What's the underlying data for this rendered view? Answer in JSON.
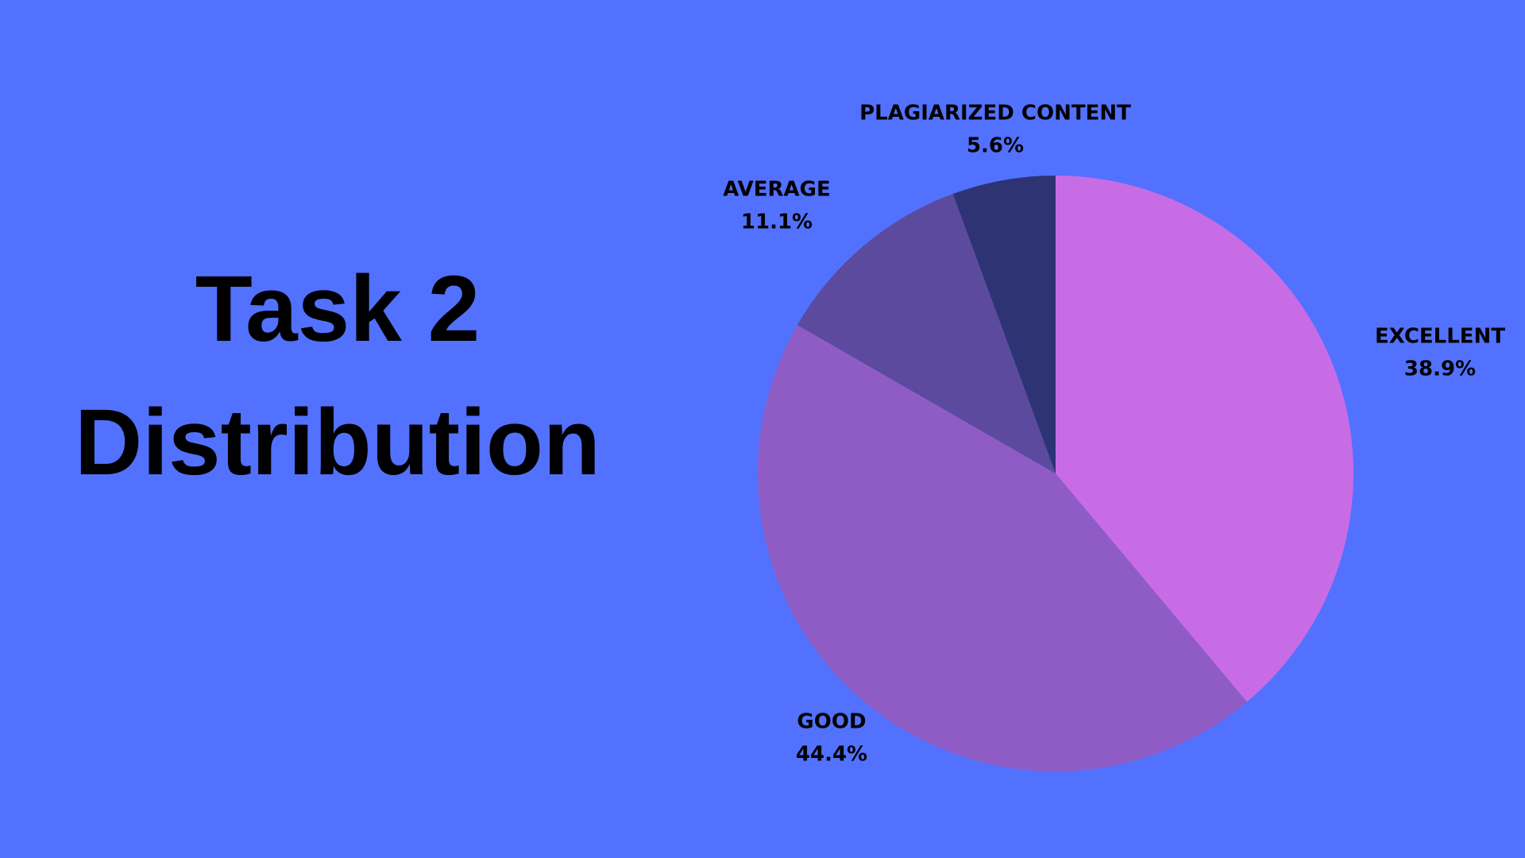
{
  "chart_data": {
    "type": "pie",
    "title": "Task 2 Distribution",
    "categories": [
      "EXCELLENT",
      "GOOD",
      "AVERAGE",
      "PLAGIARIZED CONTENT"
    ],
    "values": [
      38.9,
      44.4,
      11.1,
      5.6
    ],
    "value_labels": [
      "38.9%",
      "44.4%",
      "11.1%",
      "5.6%"
    ],
    "colors": [
      "#c86ce6",
      "#8f5cc6",
      "#5b4a9e",
      "#2e3373"
    ]
  }
}
